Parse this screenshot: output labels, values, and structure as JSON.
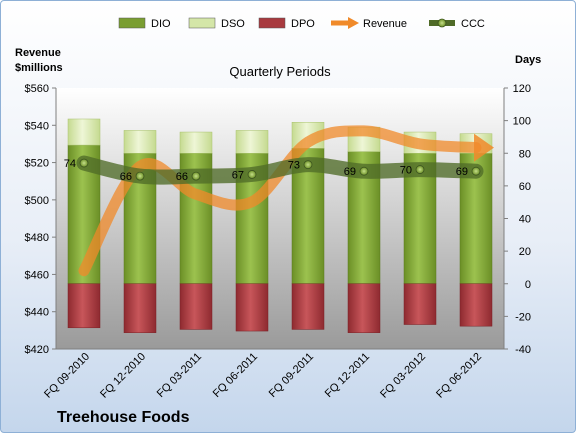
{
  "chart_data": {
    "type": "bar",
    "title": "Quarterly Periods",
    "company": "Treehouse Foods",
    "left_axis_label": [
      "Revenue",
      "$millions"
    ],
    "right_axis_label": "Days",
    "categories": [
      "FQ 09-2010",
      "FQ 12-2010",
      "FQ 03-2011",
      "FQ 06-2011",
      "FQ 09-2011",
      "FQ 12-2011",
      "FQ 03-2012",
      "FQ 06-2012"
    ],
    "left_ticks": [
      "$420",
      "$440",
      "$460",
      "$480",
      "$500",
      "$520",
      "$540",
      "$560"
    ],
    "right_ticks": [
      "-40",
      "-20",
      "0",
      "20",
      "40",
      "60",
      "80",
      "100",
      "120"
    ],
    "left_ylim": [
      420,
      560
    ],
    "right_ylim": [
      -40,
      120
    ],
    "legend": [
      {
        "name": "DIO",
        "type": "bar",
        "color": "#7a9e32"
      },
      {
        "name": "DSO",
        "type": "bar",
        "color": "#d4e6a8"
      },
      {
        "name": "DPO",
        "type": "bar",
        "color": "#a83a3f"
      },
      {
        "name": "Revenue",
        "type": "arrow",
        "color": "#f08a2a"
      },
      {
        "name": "CCC",
        "type": "line",
        "color": "#4f6b28"
      }
    ],
    "series": [
      {
        "name": "DIO",
        "axis": "days",
        "values": [
          85,
          80,
          80,
          80,
          83,
          81,
          80,
          80
        ]
      },
      {
        "name": "DSO",
        "axis": "days",
        "values": [
          16,
          14,
          13,
          14,
          16,
          15,
          13,
          12
        ]
      },
      {
        "name": "DPO",
        "axis": "days",
        "values": [
          -27,
          -30,
          -28,
          -29,
          -28,
          -30,
          -25,
          -26
        ]
      },
      {
        "name": "Revenue",
        "axis": "millions",
        "values": [
          462,
          518,
          503,
          499,
          531,
          537,
          530,
          528
        ]
      },
      {
        "name": "CCC",
        "axis": "days",
        "values": [
          74,
          66,
          66,
          67,
          73,
          69,
          70,
          69
        ]
      }
    ],
    "ccc_labels": [
      "74",
      "66",
      "66",
      "67",
      "73",
      "69",
      "70",
      "69"
    ],
    "grid": false,
    "legend_position": "top"
  }
}
